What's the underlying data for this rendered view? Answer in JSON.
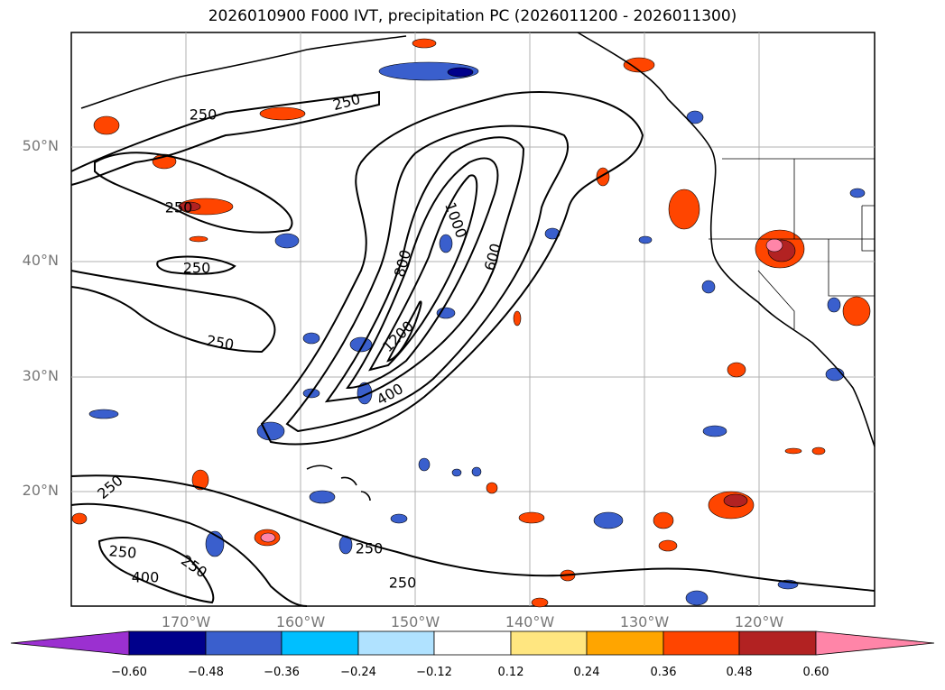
{
  "title": "2026010900 F000 IVT, precipitation PC (2026011200 - 2026011300)",
  "latitude_labels": [
    "50°N",
    "40°N",
    "30°N",
    "20°N"
  ],
  "longitude_labels": [
    "170°W",
    "160°W",
    "150°W",
    "140°W",
    "130°W",
    "120°W"
  ],
  "ivt_contour_labels": [
    "250",
    "250",
    "250",
    "250",
    "250",
    "250",
    "250",
    "250",
    "250",
    "250",
    "400",
    "400",
    "600",
    "800",
    "1000",
    "1200"
  ],
  "colorbar": {
    "ticks": [
      "−0.60",
      "−0.48",
      "−0.36",
      "−0.24",
      "−0.12",
      "0.12",
      "0.24",
      "0.36",
      "0.48",
      "0.60"
    ],
    "colors": [
      "#9b30d0",
      "#00008b",
      "#3a5fcd",
      "#00bfff",
      "#b0e2ff",
      "#ffffff",
      "#ffe680",
      "#ffa500",
      "#ff4500",
      "#b22222",
      "#ff85a8",
      "#ff85a8"
    ]
  }
}
